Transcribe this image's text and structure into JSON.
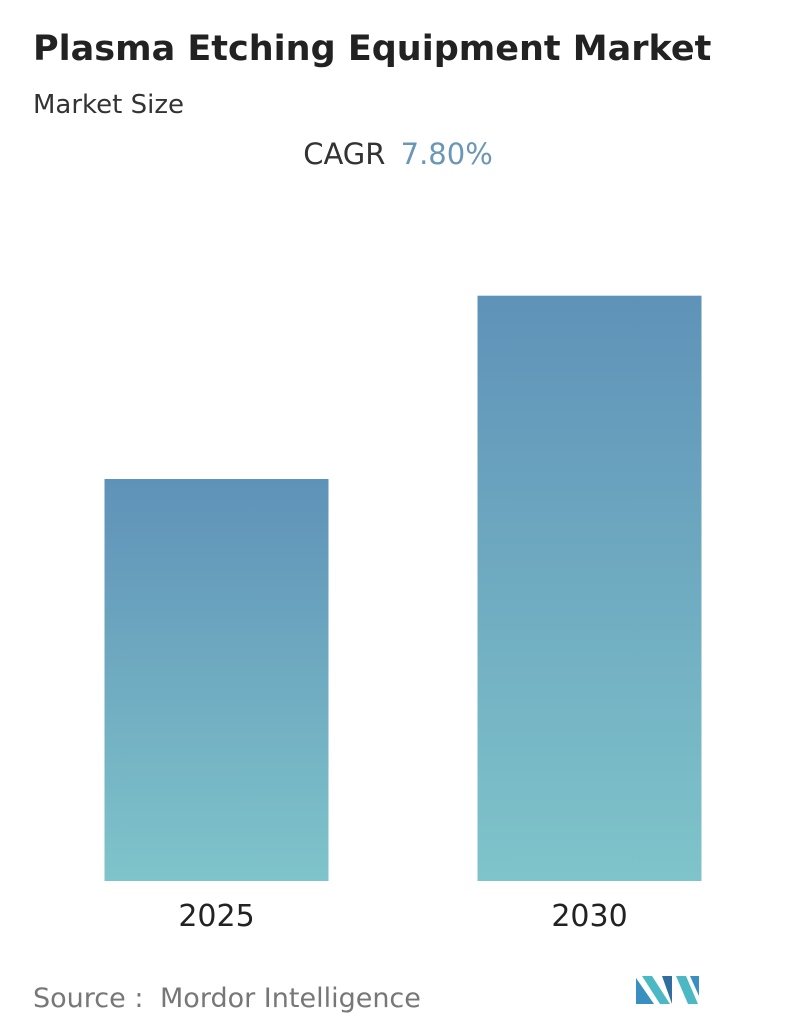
{
  "chart_data": {
    "type": "bar",
    "title": "Plasma Etching Equipment Market",
    "subtitle": "Market Size",
    "cagr": {
      "label": "CAGR",
      "value": "7.80%"
    },
    "categories": [
      "2025",
      "2030"
    ],
    "values": [
      1,
      1.456
    ],
    "ylim": [
      0,
      1.5
    ],
    "gradient": {
      "top": "#5f92b8",
      "bottom": "#7fc4ca"
    },
    "source": {
      "label": "Source :",
      "value": "Mordor Intelligence"
    }
  }
}
